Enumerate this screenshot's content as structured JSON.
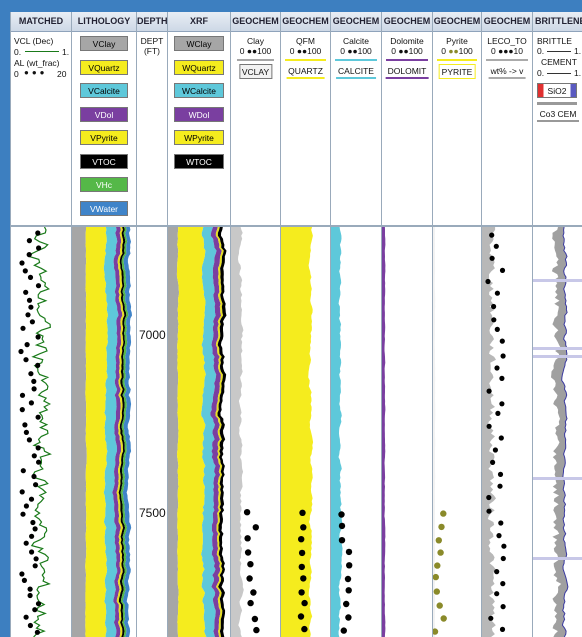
{
  "columns": {
    "matched": {
      "title": "MATCHED",
      "curve1": "VCL (Dec)",
      "curve1_min": "0.",
      "curve1_max": "1.",
      "curve2": "AL (wt_frac)",
      "curve2_min": "0",
      "curve2_max": "20"
    },
    "lithology": {
      "title": "LITHOLOGY",
      "items": [
        {
          "label": "VClay",
          "color": "#a6a6a6",
          "text_color": "#000000"
        },
        {
          "label": "VQuartz",
          "color": "#f5ec1e",
          "text_color": "#000000"
        },
        {
          "label": "VCalcite",
          "color": "#5ec8da",
          "text_color": "#000000"
        },
        {
          "label": "VDol",
          "color": "#7a3fa0",
          "text_color": "#ffffff"
        },
        {
          "label": "VPyrite",
          "color": "#f5ec1e",
          "text_color": "#000000"
        },
        {
          "label": "VTOC",
          "color": "#000000",
          "text_color": "#ffffff"
        },
        {
          "label": "VHc",
          "color": "#55b848",
          "text_color": "#ffffff"
        },
        {
          "label": "VWater",
          "color": "#3f84c9",
          "text_color": "#ffffff"
        }
      ]
    },
    "depth": {
      "title": "DEPTH",
      "unit_line1": "DEPT",
      "unit_line2": "(FT)",
      "marks": [
        "7000",
        "7500"
      ]
    },
    "xrf": {
      "title": "XRF",
      "items": [
        {
          "label": "WClay",
          "color": "#a6a6a6",
          "text_color": "#000000"
        },
        {
          "label": "WQuartz",
          "color": "#f5ec1e",
          "text_color": "#000000"
        },
        {
          "label": "WCalcite",
          "color": "#5ec8da",
          "text_color": "#000000"
        },
        {
          "label": "WDol",
          "color": "#7a3fa0",
          "text_color": "#ffffff"
        },
        {
          "label": "WPyrite",
          "color": "#f5ec1e",
          "text_color": "#000000"
        },
        {
          "label": "WTOC",
          "color": "#000000",
          "text_color": "#ffffff"
        }
      ]
    },
    "geo_clay": {
      "title": "GEOCHEM",
      "name": "Clay",
      "scale_min": "0",
      "scale_max": "100",
      "chip": "VCLAY",
      "chip_color": "#a6a6a6"
    },
    "geo_qfm": {
      "title": "GEOCHEM",
      "name": "QFM",
      "scale_min": "0",
      "scale_max": "100",
      "chip": "QUARTZ",
      "chip_color": "#f5ec1e"
    },
    "geo_calcite": {
      "title": "GEOCHEM",
      "name": "Calcite",
      "scale_min": "0",
      "scale_max": "100",
      "chip": "CALCITE",
      "chip_color": "#5ec8da"
    },
    "geo_dolomite": {
      "title": "GEOCHEM",
      "name": "Dolomite",
      "scale_min": "0",
      "scale_max": "100",
      "chip": "DOLOMIT",
      "chip_color": "#7a3fa0"
    },
    "geo_pyrite": {
      "title": "GEOCHEM",
      "name": "Pyrite",
      "scale_min": "0",
      "scale_max": "100",
      "chip": "PYRITE",
      "chip_color": "#f5ec1e"
    },
    "leco": {
      "title": "GEOCHEM",
      "name": "LECO_TO",
      "scale_min": "0",
      "scale_max": "10",
      "chip": "wt% -> v"
    },
    "brittle": {
      "title": "BRITTLENE",
      "curve1": "BRITTLE",
      "curve1_min": "0.",
      "curve1_max": "1.",
      "curve2": "CEMENT",
      "curve2_min": "0.",
      "curve2_max": "1.",
      "chip1": "SiO2",
      "chip2": "Co3 CEM"
    }
  }
}
